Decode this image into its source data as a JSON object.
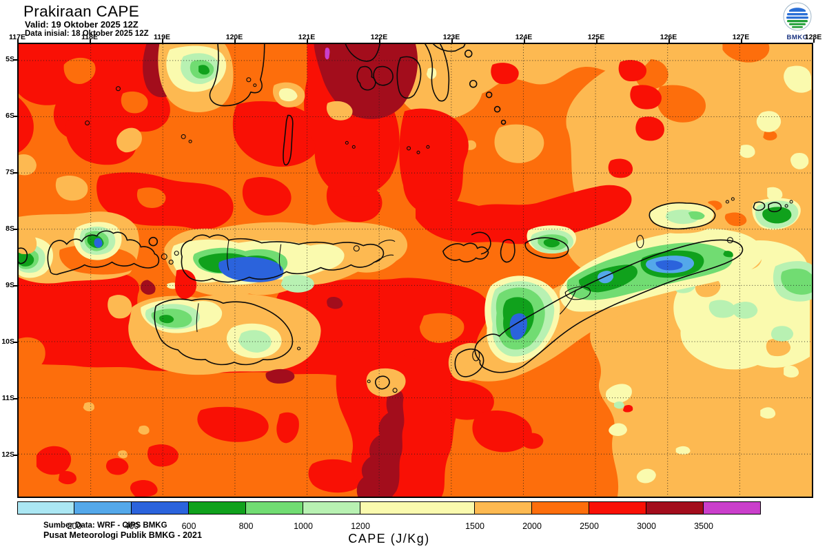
{
  "header": {
    "title": "Prakiraan CAPE",
    "valid": "Valid: 19 Oktober 2025 12Z",
    "init": "Data inisial: 18 Oktober 2025 12Z"
  },
  "logo": {
    "label": "BMKG"
  },
  "map": {
    "lon_labels": [
      "117E",
      "118E",
      "119E",
      "120E",
      "121E",
      "122E",
      "123E",
      "124E",
      "125E",
      "126E",
      "127E",
      "128E"
    ],
    "lat_labels": [
      "5S",
      "6S",
      "7S",
      "8S",
      "9S",
      "10S",
      "11S",
      "12S"
    ],
    "credit_line1": "Sumber Data: WRF - CIPS BMKG",
    "credit_line2": "Pusat Meteorologi Publik BMKG - 2021"
  },
  "colorbar": {
    "title": "CAPE (J/Kg)",
    "tick_labels": [
      "200",
      "400",
      "600",
      "800",
      "1000",
      "1200",
      "1500",
      "2000",
      "2500",
      "3000",
      "3500"
    ],
    "segments": [
      {
        "range": "0-200",
        "color": "#ABE7F3"
      },
      {
        "range": "200-400",
        "color": "#54A8EA"
      },
      {
        "range": "400-600",
        "color": "#2B63DC"
      },
      {
        "range": "600-800",
        "color": "#10A11C"
      },
      {
        "range": "800-1000",
        "color": "#71DC72"
      },
      {
        "range": "1000-1200",
        "color": "#B8F1B2"
      },
      {
        "range": "1200-1500",
        "color": "#FAFAAE"
      },
      {
        "range": "1500-2000",
        "color": "#FDB951"
      },
      {
        "range": "2000-2500",
        "color": "#FD6E0C"
      },
      {
        "range": "2500-3000",
        "color": "#F91005"
      },
      {
        "range": "3000-3500",
        "color": "#A30D1C"
      },
      {
        "range": "3500+",
        "color": "#CA3FCB"
      }
    ]
  },
  "palette": {
    "cyan": "#ABE7F3",
    "blue_mid": "#54A8EA",
    "blue": "#2B63DC",
    "green": "#10A11C",
    "green_light": "#71DC72",
    "green_pale": "#B8F1B2",
    "cream": "#FAFAAE",
    "yellow": "#FDB951",
    "orange": "#FD6E0C",
    "red": "#F91005",
    "dark_red": "#A30D1C",
    "magenta": "#CA3FCB",
    "logo_blue": "#2a6fd6",
    "logo_green": "#1f9e35"
  }
}
